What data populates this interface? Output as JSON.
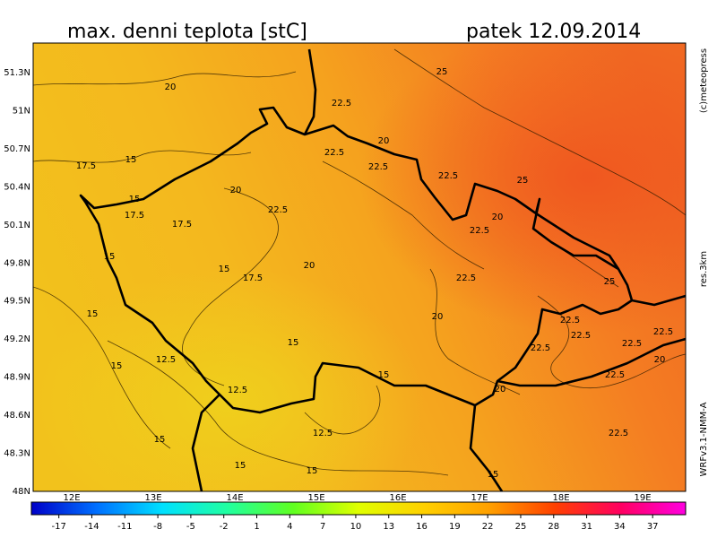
{
  "header": {
    "title": "max. denni teplota [stC]",
    "date": "patek 12.09.2014"
  },
  "side_labels": [
    "(c)meteopress",
    "res.3km",
    "WRFv3.1-NMM-A"
  ],
  "map": {
    "lat_labels": [
      "51.3N",
      "51N",
      "50.7N",
      "50.4N",
      "50.1N",
      "49.8N",
      "49.5N",
      "49.2N",
      "48.9N",
      "48.6N",
      "48.3N",
      "48N"
    ],
    "lon_labels": [
      "12E",
      "13E",
      "14E",
      "15E",
      "16E",
      "17E",
      "18E",
      "19E"
    ],
    "contour_labels": [
      20,
      25,
      22.5,
      20,
      17.5,
      15,
      22.5,
      22.5,
      22.5,
      25,
      15,
      20,
      17.5,
      22.5,
      20,
      22.5,
      17.5,
      15,
      15,
      17.5,
      20,
      22.5,
      25,
      15,
      20,
      22.5,
      15,
      22.5,
      22.5,
      22.5,
      22.5,
      15,
      12.5,
      20,
      15,
      22.5,
      12.5,
      20,
      12.5,
      15,
      22.5,
      15,
      15,
      15
    ]
  },
  "colorbar": {
    "range": [
      -19.5,
      40
    ],
    "ticks": [
      -17,
      -14,
      -11,
      -8,
      -5,
      -2,
      1,
      4,
      7,
      10,
      13,
      16,
      19,
      22,
      25,
      28,
      31,
      34,
      37
    ],
    "colors": [
      "#0000c8",
      "#0070ff",
      "#00e0ff",
      "#20ffa0",
      "#60ff20",
      "#e0ff00",
      "#ffd000",
      "#ffa000",
      "#ff4000",
      "#ff0060",
      "#ff00e0"
    ]
  }
}
